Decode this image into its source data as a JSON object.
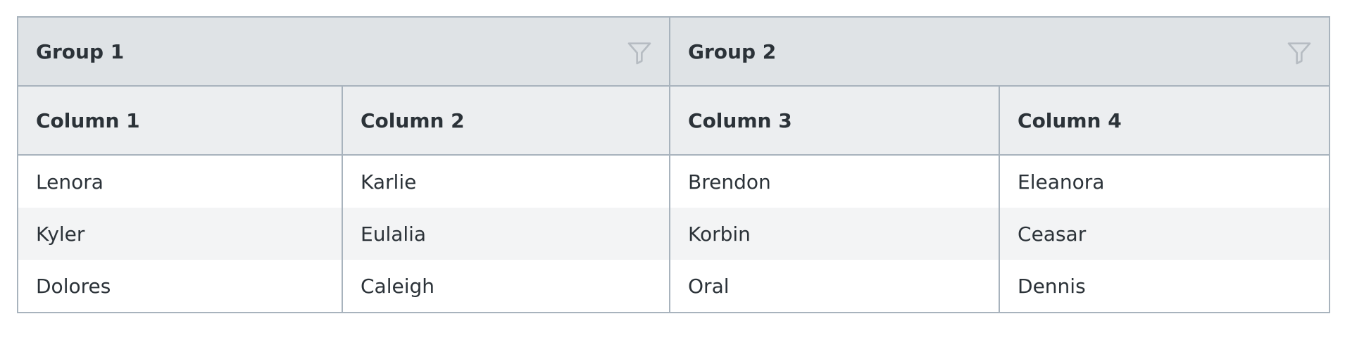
{
  "table": {
    "groups": [
      "Group 1",
      "Group 2"
    ],
    "columns": [
      "Column 1",
      "Column 2",
      "Column 3",
      "Column 4"
    ],
    "rows": [
      [
        "Lenora",
        "Karlie",
        "Brendon",
        "Eleanora"
      ],
      [
        "Kyler",
        "Eulalia",
        "Korbin",
        "Ceasar"
      ],
      [
        "Dolores",
        "Caleigh",
        "Oral",
        "Dennis"
      ]
    ]
  }
}
